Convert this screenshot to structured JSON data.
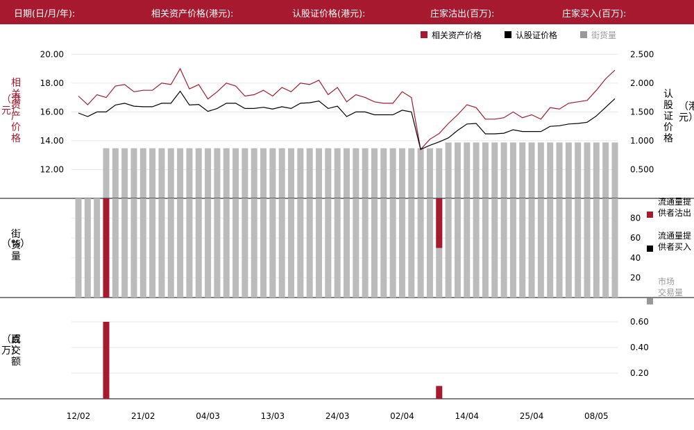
{
  "header": {
    "fields": [
      "日期(日/月/年):",
      "相关资产价格(港元):",
      "认股证价格(港元):",
      "庄家沽出(百万):",
      "庄家买入(百万):"
    ]
  },
  "chart_data": {
    "type": "line",
    "legend_top": [
      "相关资产价格",
      "认股证价格",
      "街货量"
    ],
    "legend_side": [
      "流通量提\n供者沽出",
      "流通量提\n供者买入",
      "市场\n交易量"
    ],
    "ylabel_left_top": [
      "相",
      "关",
      "资",
      "产",
      "价",
      "格",
      "（港元）"
    ],
    "ylabel_right_top": [
      "认",
      "股",
      "证",
      "价",
      "格",
      "（港元）"
    ],
    "ylabel_left_mid": [
      "街",
      "货",
      "量",
      "（%）"
    ],
    "ylabel_left_bottom": [
      "成",
      "交",
      "额",
      "（百万）"
    ],
    "x_tick_labels": [
      "12/02",
      "21/02",
      "04/03",
      "13/03",
      "24/03",
      "02/04",
      "14/04",
      "25/04",
      "08/05"
    ],
    "x_tick_index": [
      0,
      7,
      14,
      21,
      28,
      35,
      42,
      49,
      56
    ],
    "y_left_ticks": [
      12,
      14,
      16,
      18,
      20
    ],
    "y_left_range": [
      10.0,
      20.4
    ],
    "y_right_ticks": [
      0.5,
      1.0,
      1.5,
      2.0,
      2.5
    ],
    "y_right_ticks_text": [
      "0.500",
      "1.000",
      "1.500",
      "2.000",
      "2.500"
    ],
    "y_right_range": [
      0.0,
      2.6
    ],
    "y_mid_ticks": [
      20,
      40,
      60,
      80
    ],
    "y_mid_range": [
      0,
      100
    ],
    "y_bottom_ticks": [
      0.2,
      0.4,
      0.6
    ],
    "y_bottom_ticks_text": [
      "0.20",
      "0.40",
      "0.60"
    ],
    "y_bottom_range": [
      0,
      0.6
    ],
    "series": [
      {
        "name": "相关资产价格",
        "color": "#a6192e",
        "values": [
          17.1,
          16.5,
          17.2,
          17.0,
          17.8,
          17.9,
          17.4,
          17.5,
          17.5,
          18.0,
          17.9,
          19.0,
          17.6,
          17.9,
          16.9,
          17.4,
          18.0,
          17.8,
          17.1,
          17.2,
          17.5,
          17.1,
          17.7,
          17.4,
          18.0,
          17.9,
          18.2,
          17.2,
          17.7,
          16.7,
          17.2,
          17.0,
          16.7,
          16.6,
          16.6,
          17.4,
          17.0,
          13.4,
          14.1,
          14.5,
          15.2,
          15.8,
          16.5,
          16.3,
          15.5,
          15.5,
          15.6,
          16.0,
          15.6,
          15.8,
          15.5,
          16.3,
          16.2,
          16.6,
          16.7,
          16.8,
          17.5,
          18.3,
          18.9
        ]
      },
      {
        "name": "认股证价格",
        "color": "#000000",
        "values": [
          1.48,
          1.42,
          1.5,
          1.5,
          1.62,
          1.65,
          1.6,
          1.59,
          1.59,
          1.65,
          1.65,
          1.86,
          1.62,
          1.63,
          1.51,
          1.56,
          1.65,
          1.65,
          1.56,
          1.56,
          1.58,
          1.55,
          1.59,
          1.56,
          1.65,
          1.66,
          1.69,
          1.56,
          1.6,
          1.42,
          1.5,
          1.5,
          1.45,
          1.45,
          1.45,
          1.53,
          1.5,
          0.85,
          0.92,
          0.98,
          1.05,
          1.18,
          1.29,
          1.3,
          1.12,
          1.12,
          1.13,
          1.19,
          1.16,
          1.16,
          1.16,
          1.25,
          1.26,
          1.29,
          1.3,
          1.32,
          1.43,
          1.58,
          1.73
        ]
      }
    ],
    "outstanding_top": [
      null,
      null,
      null,
      0.87,
      0.87,
      0.87,
      0.87,
      0.87,
      0.87,
      0.87,
      0.87,
      0.87,
      0.87,
      0.87,
      0.87,
      0.87,
      0.87,
      0.87,
      0.87,
      0.87,
      0.87,
      0.87,
      0.87,
      0.87,
      0.87,
      0.87,
      0.87,
      0.87,
      0.87,
      0.87,
      0.87,
      0.87,
      0.87,
      0.87,
      0.87,
      0.87,
      0.87,
      0.87,
      0.87,
      0.87,
      0.97,
      0.97,
      0.97,
      0.97,
      0.97,
      0.97,
      0.97,
      0.97,
      0.97,
      0.97,
      0.97,
      0.97,
      0.97,
      0.97,
      0.97,
      0.97,
      0.97,
      0.97,
      0.97
    ],
    "outstanding_pct": [
      100,
      100,
      100,
      100,
      100,
      100,
      100,
      100,
      100,
      100,
      100,
      100,
      100,
      100,
      100,
      100,
      100,
      100,
      100,
      100,
      100,
      100,
      100,
      100,
      100,
      100,
      100,
      100,
      100,
      100,
      100,
      100,
      100,
      100,
      100,
      100,
      100,
      100,
      100,
      100,
      100,
      100,
      100,
      100,
      100,
      100,
      100,
      100,
      100,
      100,
      100,
      100,
      100,
      100,
      100,
      100,
      100,
      100,
      100
    ],
    "mm_sell_pct": [
      {
        "index": 3,
        "value": 100
      },
      {
        "index": 39,
        "value": 50
      }
    ],
    "turnover": [
      {
        "index": 3,
        "value": 0.6
      },
      {
        "index": 39,
        "value": 0.1
      }
    ]
  }
}
